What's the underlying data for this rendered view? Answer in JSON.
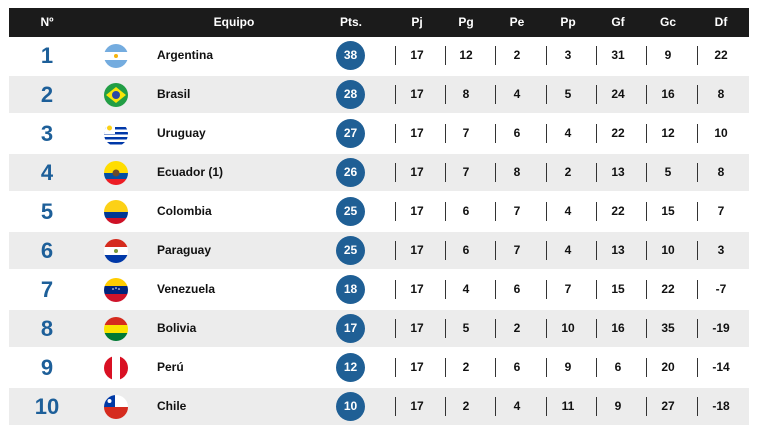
{
  "header": {
    "pos": "Nº",
    "team": "Equipo",
    "pts": "Pts.",
    "pj": "Pj",
    "pg": "Pg",
    "pe": "Pe",
    "pp": "Pp",
    "gf": "Gf",
    "gc": "Gc",
    "df": "Df"
  },
  "rows": [
    {
      "pos": "1",
      "team": "Argentina",
      "flag": "argentina-flag-icon",
      "pts": "38",
      "pj": "17",
      "pg": "12",
      "pe": "2",
      "pp": "3",
      "gf": "31",
      "gc": "9",
      "df": "22"
    },
    {
      "pos": "2",
      "team": "Brasil",
      "flag": "brazil-flag-icon",
      "pts": "28",
      "pj": "17",
      "pg": "8",
      "pe": "4",
      "pp": "5",
      "gf": "24",
      "gc": "16",
      "df": "8"
    },
    {
      "pos": "3",
      "team": "Uruguay",
      "flag": "uruguay-flag-icon",
      "pts": "27",
      "pj": "17",
      "pg": "7",
      "pe": "6",
      "pp": "4",
      "gf": "22",
      "gc": "12",
      "df": "10"
    },
    {
      "pos": "4",
      "team": "Ecuador",
      "note": "(1)",
      "flag": "ecuador-flag-icon",
      "pts": "26",
      "pj": "17",
      "pg": "7",
      "pe": "8",
      "pp": "2",
      "gf": "13",
      "gc": "5",
      "df": "8"
    },
    {
      "pos": "5",
      "team": "Colombia",
      "flag": "colombia-flag-icon",
      "pts": "25",
      "pj": "17",
      "pg": "6",
      "pe": "7",
      "pp": "4",
      "gf": "22",
      "gc": "15",
      "df": "7"
    },
    {
      "pos": "6",
      "team": "Paraguay",
      "flag": "paraguay-flag-icon",
      "pts": "25",
      "pj": "17",
      "pg": "6",
      "pe": "7",
      "pp": "4",
      "gf": "13",
      "gc": "10",
      "df": "3"
    },
    {
      "pos": "7",
      "team": "Venezuela",
      "flag": "venezuela-flag-icon",
      "pts": "18",
      "pj": "17",
      "pg": "4",
      "pe": "6",
      "pp": "7",
      "gf": "15",
      "gc": "22",
      "df": "-7"
    },
    {
      "pos": "8",
      "team": "Bolivia",
      "flag": "bolivia-flag-icon",
      "pts": "17",
      "pj": "17",
      "pg": "5",
      "pe": "2",
      "pp": "10",
      "gf": "16",
      "gc": "35",
      "df": "-19"
    },
    {
      "pos": "9",
      "team": "Perú",
      "flag": "peru-flag-icon",
      "pts": "12",
      "pj": "17",
      "pg": "2",
      "pe": "6",
      "pp": "9",
      "gf": "6",
      "gc": "20",
      "df": "-14"
    },
    {
      "pos": "10",
      "team": "Chile",
      "flag": "chile-flag-icon",
      "pts": "10",
      "pj": "17",
      "pg": "2",
      "pe": "4",
      "pp": "11",
      "gf": "9",
      "gc": "27",
      "df": "-18"
    }
  ],
  "colors": {
    "position": "#1d5f99",
    "points_badge": "#1f5f95",
    "header_bg": "#1b1b1b",
    "row_alt": "#ececec"
  }
}
